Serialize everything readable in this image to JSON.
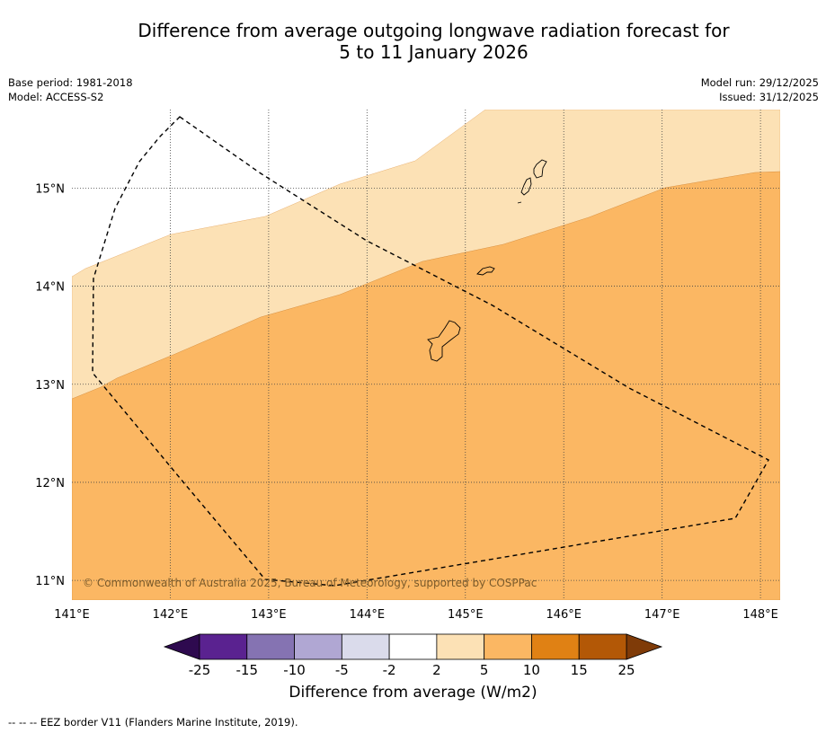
{
  "title": {
    "line1": "Difference from average outgoing longwave radiation forecast for",
    "line2": "5 to 11 January 2026"
  },
  "meta": {
    "base_period": "Base period: 1981-2018",
    "model": "Model: ACCESS-S2",
    "model_run": "Model run: 29/12/2025",
    "issued": "Issued: 31/12/2025"
  },
  "map": {
    "lon_range": [
      141.0,
      148.2
    ],
    "lat_range": [
      10.8,
      15.8
    ],
    "lon_ticks": [
      141,
      142,
      143,
      144,
      145,
      146,
      147,
      148
    ],
    "lon_labels": [
      "141°E",
      "142°E",
      "143°E",
      "144°E",
      "145°E",
      "146°E",
      "147°E",
      "148°E"
    ],
    "lat_ticks": [
      11,
      12,
      13,
      14,
      15
    ],
    "lat_labels": [
      "11°N",
      "12°N",
      "13°N",
      "14°N",
      "15°N"
    ],
    "copyright": "© Commonwealth of Australia 2025, Bureau of Meteorology, supported by COSPPac",
    "regions": [
      {
        "name": "2 to 5 W/m2",
        "color": "#fce1b5"
      },
      {
        "name": "5 to 10 W/m2",
        "color": "#fbb763"
      }
    ],
    "islands": [
      "Guam",
      "Rota",
      "Tinian",
      "Saipan"
    ]
  },
  "colorbar": {
    "ticks": [
      "-25",
      "-15",
      "-10",
      "-5",
      "-2",
      "2",
      "5",
      "10",
      "15",
      "25"
    ],
    "colors": [
      "#5a2290",
      "#8573b2",
      "#b0a7d3",
      "#dadbeb",
      "#ffffff",
      "#fce1b5",
      "#fbb763",
      "#e08114",
      "#b35806"
    ],
    "extend_low_color": "#2e0a4f",
    "extend_high_color": "#7f3b08",
    "label": "Difference from average (W/m2)"
  },
  "footer": {
    "eez_legend": "--  --  -- EEZ border V11 (Flanders Marine Institute, 2019)."
  }
}
